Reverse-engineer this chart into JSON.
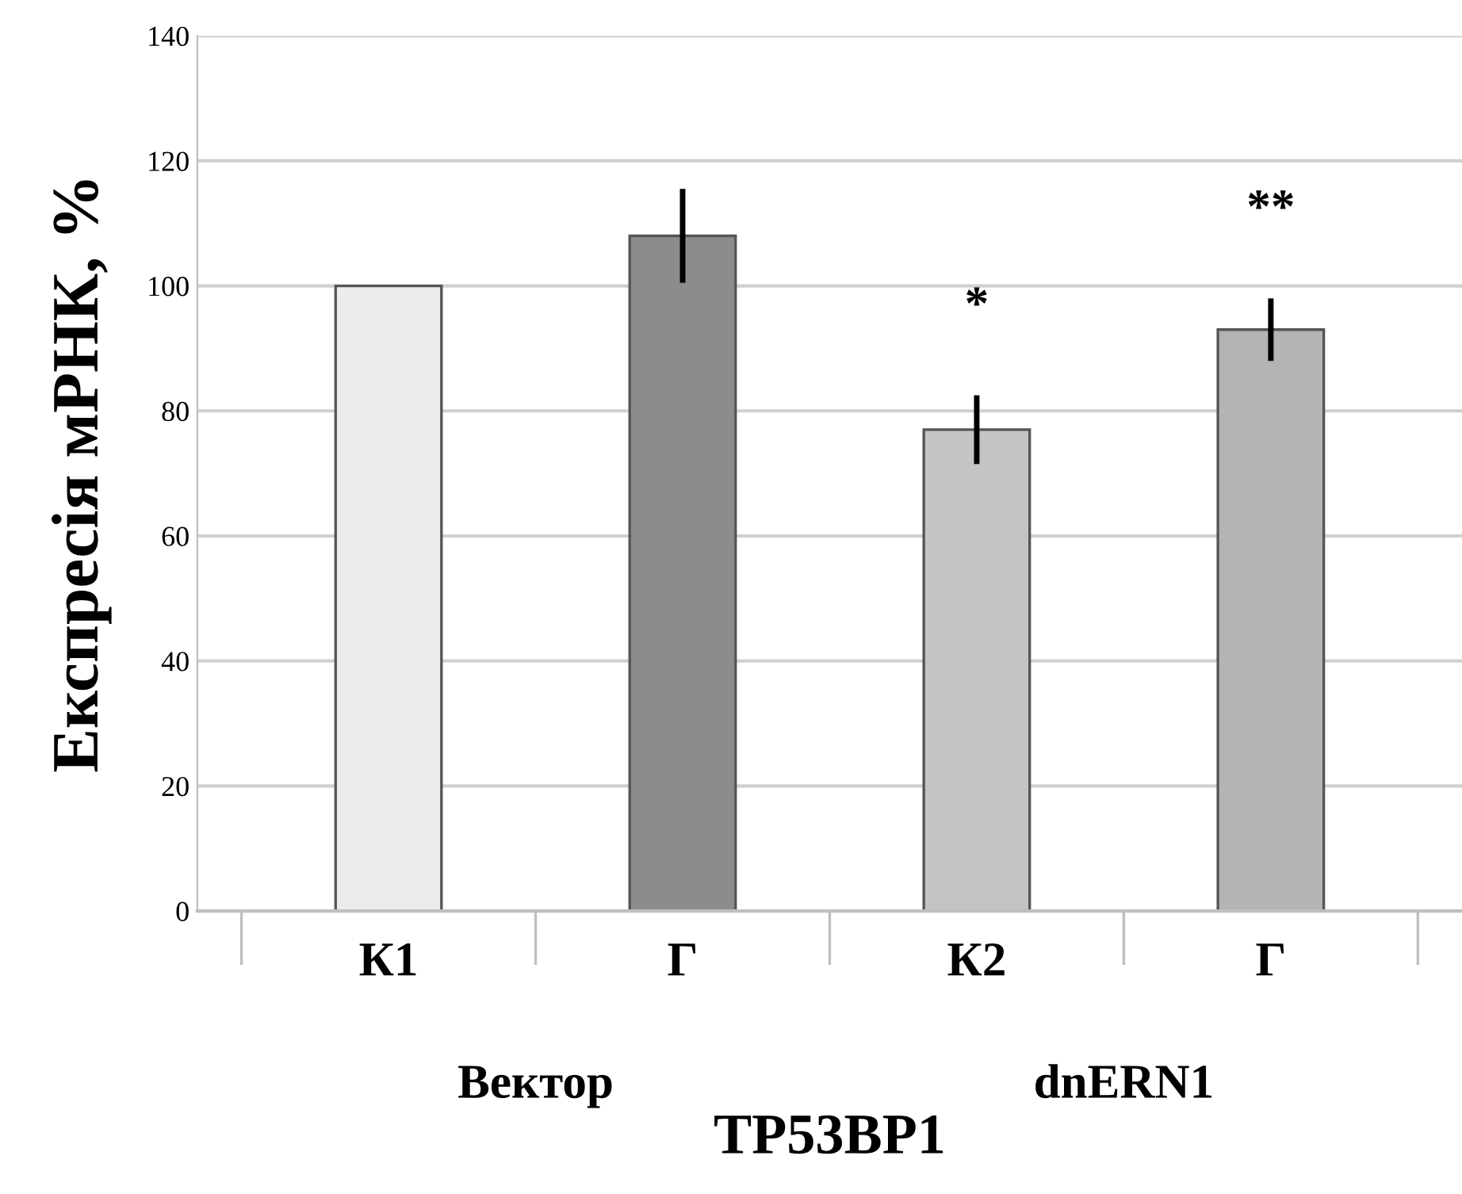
{
  "chart_data": {
    "type": "bar",
    "ylabel": "Експресія мРНК, %",
    "xlabel": "TP53BP1",
    "categories": [
      "К1",
      "Г",
      "К2",
      "Г"
    ],
    "values": [
      100,
      108,
      77,
      93
    ],
    "errors": [
      null,
      7.5,
      5.5,
      5
    ],
    "colors": [
      "#ececec",
      "#8c8c8c",
      "#c4c4c4",
      "#b4b4b4"
    ],
    "ylim": [
      0,
      140
    ],
    "yticks": [
      0,
      20,
      40,
      60,
      80,
      100,
      120,
      140
    ],
    "grid": "y",
    "annotations": [
      "*",
      "**",
      "Вектор",
      "dnERN1"
    ]
  }
}
